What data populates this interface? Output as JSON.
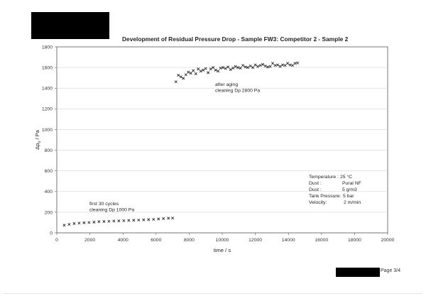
{
  "page": {
    "title": "Development of Residual Pressure Drop - Sample FW3: Competitor 2 - Sample 2",
    "page_label": "Page 3/4"
  },
  "chart_data": {
    "type": "scatter",
    "title": "Development of Residual Pressure Drop - Sample FW3: Competitor 2 - Sample 2",
    "xlabel": "time / s",
    "ylabel": "Δp",
    "ylabel_sub": "o",
    "ylabel_unit": " / Pa",
    "xlim": [
      0,
      20000
    ],
    "ylim": [
      0,
      1800
    ],
    "xticks": [
      0,
      2000,
      4000,
      6000,
      8000,
      10000,
      12000,
      14000,
      16000,
      18000,
      20000
    ],
    "yticks": [
      0,
      200,
      400,
      600,
      800,
      1000,
      1200,
      1400,
      1600,
      1800
    ],
    "grid": "horizontal",
    "marker": "x",
    "series": [
      {
        "x": [
          450,
          750,
          1050,
          1350,
          1650,
          1950,
          2250,
          2550,
          2850,
          3150,
          3450,
          3750,
          4050,
          4350,
          4650,
          4950,
          5250,
          5550,
          5850,
          6150,
          6450,
          6750,
          7000
        ],
        "y": [
          74,
          82,
          90,
          94,
          98,
          100,
          104,
          108,
          110,
          112,
          114,
          116,
          118,
          120,
          122,
          124,
          126,
          128,
          130,
          134,
          138,
          142,
          143
        ]
      },
      {
        "x": [
          7200,
          7350,
          7500,
          7650,
          7800,
          7950,
          8100,
          8250,
          8400,
          8550,
          8700,
          8850,
          9000,
          9150,
          9300,
          9450,
          9600,
          9750,
          9900,
          10050,
          10200,
          10350,
          10500,
          10650,
          10800,
          10950,
          11100,
          11250,
          11400,
          11550,
          11700,
          11850,
          12000,
          12150,
          12300,
          12450,
          12600,
          12750,
          12900,
          13050,
          13200,
          13350,
          13500,
          13650,
          13800,
          13950,
          14100,
          14250,
          14400,
          14550
        ],
        "y": [
          1462,
          1525,
          1510,
          1495,
          1530,
          1555,
          1545,
          1570,
          1540,
          1585,
          1565,
          1575,
          1590,
          1550,
          1585,
          1600,
          1575,
          1565,
          1595,
          1600,
          1590,
          1605,
          1580,
          1595,
          1610,
          1600,
          1595,
          1620,
          1605,
          1600,
          1615,
          1600,
          1625,
          1610,
          1620,
          1630,
          1615,
          1605,
          1610,
          1640,
          1620,
          1625,
          1610,
          1625,
          1620,
          1640,
          1625,
          1620,
          1640,
          1645
        ]
      }
    ],
    "annotations": [
      {
        "lines": [
          "first 30 cycles",
          "cleaning Dp 1000 Pa"
        ]
      },
      {
        "lines": [
          "after aging",
          "cleaning Dp 2800 Pa"
        ]
      }
    ],
    "info_box": [
      {
        "label": "Temperature :",
        "value": "25 °C"
      },
      {
        "label": "Dust :",
        "value": "Pural NF"
      },
      {
        "label": "Dust :",
        "value": "5 g/m3"
      },
      {
        "label": "Tank Pressure:",
        "value": "5 bar"
      },
      {
        "label": "Velocity:",
        "value": "2 m/min"
      }
    ]
  }
}
